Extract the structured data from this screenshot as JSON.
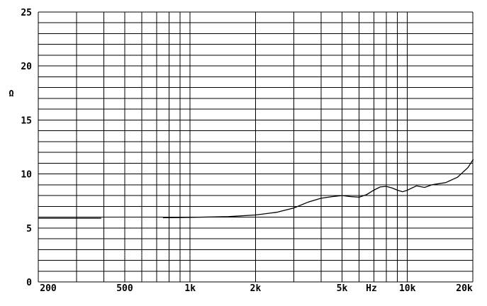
{
  "chart_data": {
    "type": "line",
    "title": "",
    "xlabel": "Hz",
    "ylabel": "Ω",
    "x_scale": "log",
    "xlim": [
      200,
      20000
    ],
    "ylim": [
      0,
      25
    ],
    "grid": true,
    "x_ticks": [
      {
        "value": 200,
        "label": "200"
      },
      {
        "value": 500,
        "label": "500"
      },
      {
        "value": 1000,
        "label": "1k"
      },
      {
        "value": 2000,
        "label": "2k"
      },
      {
        "value": 5000,
        "label": "5k"
      },
      {
        "value": 10000,
        "label": "10k"
      },
      {
        "value": 20000,
        "label": "20k"
      }
    ],
    "y_ticks": [
      {
        "value": 0,
        "label": "0"
      },
      {
        "value": 5,
        "label": "5"
      },
      {
        "value": 10,
        "label": "10"
      },
      {
        "value": 15,
        "label": "15"
      },
      {
        "value": 20,
        "label": "20"
      },
      {
        "value": 25,
        "label": "25"
      }
    ],
    "series": [
      {
        "color": "#000000",
        "segments": [
          [
            [
              200,
              5.9
            ],
            [
              390,
              5.9
            ]
          ],
          [
            [
              750,
              5.95
            ],
            [
              1000,
              5.98
            ],
            [
              1500,
              6.05
            ],
            [
              2000,
              6.2
            ],
            [
              2500,
              6.45
            ],
            [
              3000,
              6.85
            ],
            [
              3500,
              7.4
            ],
            [
              4000,
              7.75
            ],
            [
              4500,
              7.9
            ],
            [
              5000,
              8.0
            ],
            [
              5500,
              7.9
            ],
            [
              6000,
              7.85
            ],
            [
              6500,
              8.1
            ],
            [
              7000,
              8.5
            ],
            [
              7500,
              8.8
            ],
            [
              8000,
              8.85
            ],
            [
              8500,
              8.7
            ],
            [
              9000,
              8.5
            ],
            [
              9500,
              8.35
            ],
            [
              10000,
              8.5
            ],
            [
              11000,
              8.9
            ],
            [
              12000,
              8.75
            ],
            [
              13000,
              9.0
            ],
            [
              15000,
              9.2
            ],
            [
              17000,
              9.7
            ],
            [
              19000,
              10.6
            ],
            [
              20000,
              11.3
            ],
            [
              21000,
              11.4
            ]
          ]
        ]
      }
    ]
  }
}
